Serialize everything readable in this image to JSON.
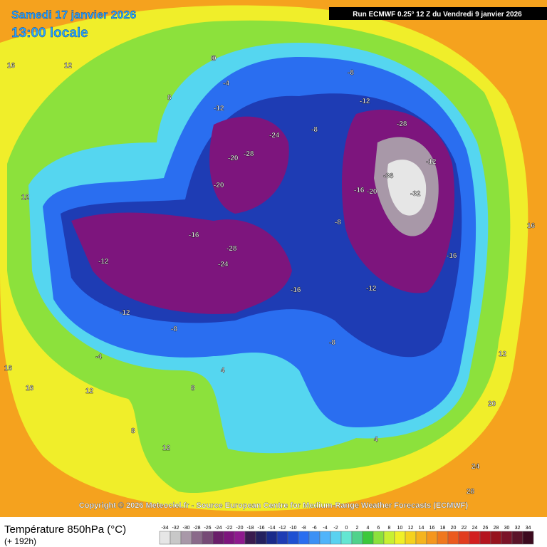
{
  "header": {
    "date": "Samedi 17 janvier 2026",
    "time": "13:00 locale",
    "run": "Run ECMWF 0.25° 12 Z du Vendredi 9 janvier 2026"
  },
  "map": {
    "copyright": "Copyright © 2026 Meteociel.fr - Source European Centre for Medium-Range Weather Forecasts (ECMWF)",
    "labels": [
      "16",
      "12",
      "12",
      "8",
      "0",
      "-4",
      "-8",
      "-12",
      "-12",
      "-20",
      "-24",
      "-28",
      "-8",
      "-20",
      "-28",
      "-36",
      "-32",
      "-16",
      "-20",
      "-12",
      "-16",
      "-28",
      "-24",
      "-16",
      "-12",
      "-8",
      "-12",
      "-16",
      "-4",
      "-8",
      "0",
      "4",
      "8",
      "12",
      "16",
      "12",
      "16",
      "20",
      "24",
      "28",
      "-12",
      "-8",
      "4",
      "8",
      "12",
      "16"
    ]
  },
  "legend": {
    "title": "Température 850hPa (°C)",
    "lead": "(+ 192h)",
    "ticks": [
      -34,
      -32,
      -30,
      -28,
      -26,
      -24,
      -22,
      -20,
      -18,
      -16,
      -14,
      -12,
      -10,
      -8,
      -6,
      -4,
      -2,
      0,
      2,
      4,
      6,
      8,
      10,
      12,
      14,
      16,
      18,
      20,
      22,
      24,
      26,
      28,
      30,
      32,
      34
    ],
    "colors": [
      "#e6e6e6",
      "#c8c8c8",
      "#a898a8",
      "#8a6a8a",
      "#764a76",
      "#6a1e6a",
      "#7d157d",
      "#8e1a8e",
      "#3a1b4e",
      "#24205e",
      "#1a2a8a",
      "#1e3cb4",
      "#1e50d2",
      "#2a6ef0",
      "#3c90f5",
      "#50b4fa",
      "#5ad2f0",
      "#64e6d2",
      "#50d28c",
      "#3cc83c",
      "#8ce13c",
      "#c8f032",
      "#f0f028",
      "#f5d21e",
      "#f5b41e",
      "#f5961e",
      "#f0781e",
      "#eb5a1e",
      "#e13c1e",
      "#d21e1e",
      "#b4141e",
      "#96141e",
      "#7a1428",
      "#5a1428",
      "#3c0a1e"
    ]
  }
}
